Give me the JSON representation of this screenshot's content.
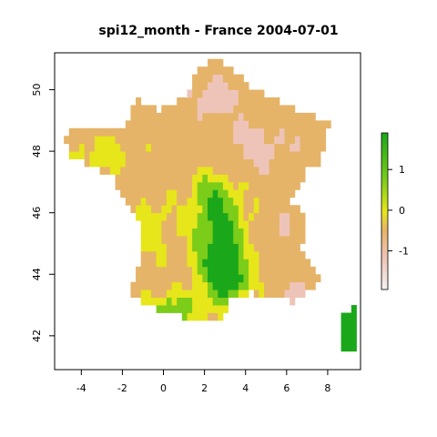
{
  "title": "spi12_month - France 2004-07-01",
  "chart_data": {
    "type": "heatmap",
    "variable": "spi12_month",
    "region": "France",
    "date": "2004-07-01",
    "xlim": [
      -5.3,
      9.6
    ],
    "ylim": [
      40.9,
      51.2
    ],
    "x_ticks": [
      -4,
      -2,
      0,
      2,
      4,
      6,
      8
    ],
    "y_ticks": [
      42,
      44,
      46,
      48,
      50
    ],
    "x_tick_labels": [
      "-4",
      "-2",
      "0",
      "2",
      "4",
      "6",
      "8"
    ],
    "y_tick_labels": [
      "42",
      "44",
      "46",
      "48",
      "50"
    ],
    "legend": {
      "placement": "right",
      "range": [
        -1.95,
        1.9
      ],
      "ticks": [
        -1,
        0,
        1
      ],
      "tick_labels": [
        "-1",
        "0",
        "1"
      ]
    },
    "colors": {
      "wet": "#1aa81a",
      "mid_green": "#7ccc1a",
      "neutral": "#e6e61a",
      "dry": "#e5b468",
      "very_dry": "#efc4b8",
      "extreme_dry": "#f2f2f2"
    }
  }
}
